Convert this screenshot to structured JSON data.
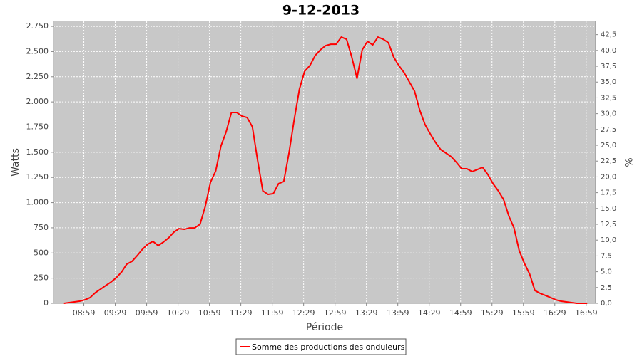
{
  "chart_data": {
    "type": "line",
    "title": "9-12-2013",
    "x_label": "Période",
    "y_label": "Watts",
    "y2_label": "%",
    "x": [
      "08:40",
      "08:45",
      "08:50",
      "08:55",
      "09:00",
      "09:05",
      "09:10",
      "09:15",
      "09:20",
      "09:25",
      "09:30",
      "09:35",
      "09:40",
      "09:45",
      "09:50",
      "09:55",
      "10:00",
      "10:05",
      "10:10",
      "10:15",
      "10:20",
      "10:25",
      "10:30",
      "10:35",
      "10:40",
      "10:45",
      "10:50",
      "10:55",
      "11:00",
      "11:05",
      "11:10",
      "11:15",
      "11:20",
      "11:25",
      "11:30",
      "11:35",
      "11:40",
      "11:45",
      "11:50",
      "11:55",
      "12:00",
      "12:05",
      "12:10",
      "12:15",
      "12:20",
      "12:25",
      "12:30",
      "12:35",
      "12:40",
      "12:45",
      "12:50",
      "12:55",
      "13:00",
      "13:05",
      "13:10",
      "13:15",
      "13:20",
      "13:25",
      "13:30",
      "13:35",
      "13:40",
      "13:45",
      "13:50",
      "13:55",
      "14:00",
      "14:05",
      "14:10",
      "14:15",
      "14:20",
      "14:25",
      "14:30",
      "14:35",
      "14:40",
      "14:45",
      "14:50",
      "14:55",
      "15:00",
      "15:05",
      "15:10",
      "15:15",
      "15:20",
      "15:25",
      "15:30",
      "15:35",
      "15:40",
      "15:45",
      "15:50",
      "15:55",
      "16:00",
      "16:05",
      "16:10",
      "16:15",
      "16:20",
      "16:25",
      "16:30",
      "16:35",
      "16:40",
      "16:45",
      "16:50",
      "16:55",
      "17:00"
    ],
    "series": [
      {
        "name": "Somme des productions des onduleurs",
        "color": "#ff0000",
        "values": [
          0,
          7,
          14,
          21,
          35,
          57,
          106,
          141,
          177,
          212,
          255,
          311,
          389,
          417,
          474,
          537,
          587,
          615,
          573,
          608,
          650,
          707,
          742,
          735,
          749,
          749,
          785,
          962,
          1202,
          1315,
          1562,
          1704,
          1895,
          1895,
          1859,
          1845,
          1753,
          1421,
          1117,
          1082,
          1089,
          1188,
          1209,
          1492,
          1824,
          2128,
          2305,
          2361,
          2460,
          2517,
          2559,
          2573,
          2573,
          2644,
          2623,
          2446,
          2234,
          2517,
          2602,
          2566,
          2644,
          2623,
          2588,
          2446,
          2361,
          2291,
          2199,
          2107,
          1916,
          1775,
          1683,
          1598,
          1527,
          1492,
          1456,
          1400,
          1336,
          1336,
          1308,
          1329,
          1350,
          1280,
          1188,
          1117,
          1032,
          870,
          749,
          523,
          396,
          290,
          127,
          99,
          78,
          57,
          35,
          21,
          14,
          7,
          0,
          0,
          0
        ]
      }
    ],
    "xlim": [
      "08:30",
      "17:08"
    ],
    "xticks": [
      "08:59",
      "09:29",
      "09:59",
      "10:29",
      "10:59",
      "11:29",
      "11:59",
      "12:29",
      "12:59",
      "13:29",
      "13:59",
      "14:29",
      "14:59",
      "15:29",
      "15:59",
      "16:29",
      "16:59"
    ],
    "ylim": [
      0,
      2800
    ],
    "yticks": [
      0,
      250,
      500,
      750,
      {
        "value": 1000,
        "label": "1.000"
      },
      {
        "value": 1250,
        "label": "1.250"
      },
      {
        "value": 1500,
        "label": "1.500"
      },
      {
        "value": 1750,
        "label": "1.750"
      },
      {
        "value": 2000,
        "label": "2.000"
      },
      {
        "value": 2250,
        "label": "2.250"
      },
      {
        "value": 2500,
        "label": "2.500"
      },
      {
        "value": 2750,
        "label": "2.750"
      }
    ],
    "y2lim": [
      0,
      44.6
    ],
    "y2ticks": [
      {
        "value": 0,
        "label": "0,0"
      },
      {
        "value": 2.5,
        "label": "2,5"
      },
      {
        "value": 5,
        "label": "5,0"
      },
      {
        "value": 7.5,
        "label": "7,5"
      },
      {
        "value": 10,
        "label": "10,0"
      },
      {
        "value": 12.5,
        "label": "12,5"
      },
      {
        "value": 15,
        "label": "15,0"
      },
      {
        "value": 17.5,
        "label": "17,5"
      },
      {
        "value": 20,
        "label": "20,0"
      },
      {
        "value": 22.5,
        "label": "22,5"
      },
      {
        "value": 25,
        "label": "25,0"
      },
      {
        "value": 27.5,
        "label": "27,5"
      },
      {
        "value": 30,
        "label": "30,0"
      },
      {
        "value": 32.5,
        "label": "32,5"
      },
      {
        "value": 35,
        "label": "35,0"
      },
      {
        "value": 37.5,
        "label": "37,5"
      },
      {
        "value": 40,
        "label": "40,0"
      },
      {
        "value": 42.5,
        "label": "42,5"
      }
    ],
    "grid": true,
    "legend": "bottom"
  }
}
